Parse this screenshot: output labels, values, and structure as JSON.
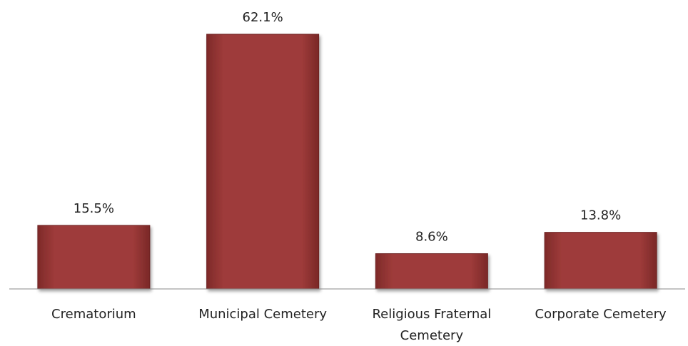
{
  "chart_data": {
    "type": "bar",
    "categories": [
      "Crematorium",
      "Municipal Cemetery",
      "Religious Fraternal Cemetery",
      "Corporate Cemetery"
    ],
    "values": [
      15.5,
      62.1,
      8.6,
      13.8
    ],
    "value_labels": [
      "15.5%",
      "62.1%",
      "8.6%",
      "13.8%"
    ],
    "color": "#9e3b3a"
  }
}
